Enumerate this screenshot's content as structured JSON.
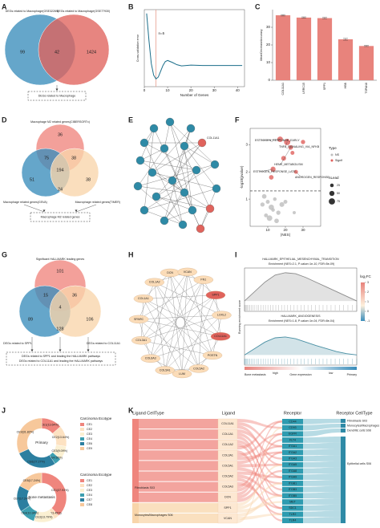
{
  "panel_labels": [
    "A",
    "B",
    "C",
    "D",
    "E",
    "F",
    "G",
    "H",
    "I",
    "J",
    "K"
  ],
  "venn_a": {
    "sets": [
      "DEGs related to Macrophage(GSE32269)",
      "DEGs related to Macrophage(GSE77930)"
    ],
    "counts": [
      99,
      42,
      1424
    ],
    "result": "DEGs related to Macrophage"
  },
  "venn_d": {
    "sets": [
      "Macrophage M2 related genes(CIBERSORTx)",
      "Macrophage related genes(GSVA)",
      "Macrophage related genes(TIMER)"
    ],
    "counts": [
      36,
      51,
      38,
      75,
      38,
      24,
      194
    ],
    "result": "Macrophage M2 related genes"
  },
  "network_e": {
    "label": "COL11A1"
  },
  "venn_g": {
    "sets": [
      "Significant HALLMARK leading genes",
      "DEGs related to SPP1",
      "DEGs related to COL11A1"
    ],
    "counts": [
      101,
      89,
      106,
      15,
      36,
      128,
      4
    ],
    "results": [
      "DEGs related to SPP1 and leading the HALLMARK pathways",
      "DEGs related to COL11A1 and leading the HALLMARK pathways"
    ]
  },
  "network_h": {
    "genes": [
      {
        "label": "DCN",
        "color": "#fbdcb8"
      },
      {
        "label": "VCAN",
        "color": "#fbdcb8"
      },
      {
        "label": "FN1",
        "color": "#fbdcb8"
      },
      {
        "label": "SPP1",
        "color": "#e0635c"
      },
      {
        "label": "LOXL2",
        "color": "#fbdcb8"
      },
      {
        "label": "COL11A1",
        "color": "#e0635c"
      },
      {
        "label": "POSTN",
        "color": "#fbdcb8"
      },
      {
        "label": "COL5A2",
        "color": "#fbdcb8"
      },
      {
        "label": "LUM",
        "color": "#fbdcb8"
      },
      {
        "label": "COL5A1",
        "color": "#fbdcb8"
      },
      {
        "label": "COL6A3",
        "color": "#fbdcb8"
      },
      {
        "label": "COL3A1",
        "color": "#fbdcb8"
      },
      {
        "label": "SPARC",
        "color": "#fbdcb8"
      },
      {
        "label": "COL1A1",
        "color": "#fbdcb8"
      },
      {
        "label": "COL1A2",
        "color": "#fbdcb8"
      }
    ]
  },
  "sankey_k": {
    "headers": [
      "Ligand CellType",
      "Ligand",
      "Receptor",
      "Receptor CellType"
    ],
    "ligand_celltypes": [
      "Fibroblasts S03",
      "Monocytes/Macrophages S06"
    ],
    "ligands": [
      "COL11A1",
      "COL1A1",
      "COL1A2",
      "COL3A1",
      "COL5A1",
      "COL5A2",
      "COL5A3",
      "DCN",
      "SPP1",
      "VCAN"
    ],
    "receptors": [
      "CD44",
      "CD93",
      "EGFR",
      "FLT4",
      "ITGA1",
      "ITGA2",
      "ITGA3",
      "ITGA5",
      "ITGA8",
      "ITGA9",
      "ITGB1",
      "ITGB3",
      "ITGB5",
      "MET",
      "SDC1",
      "TLR2",
      "TLR4"
    ],
    "receptor_celltypes": [
      "Fibroblasts S03",
      "Monocytes/Macrophages S06",
      "Dendritic cells S08",
      "Epithelial cells S06"
    ]
  },
  "chart_data": [
    {
      "type": "line",
      "x": [
        1,
        2,
        3,
        4,
        5,
        6,
        7,
        8,
        9,
        10,
        12,
        14,
        16,
        18,
        20,
        25,
        30,
        35,
        40,
        42
      ],
      "values": [
        0.29,
        0.22,
        0.16,
        0.13,
        0.12,
        0.125,
        0.14,
        0.155,
        0.165,
        0.168,
        0.163,
        0.157,
        0.154,
        0.155,
        0.156,
        0.155,
        0.155,
        0.155,
        0.155,
        0.155
      ],
      "xlim": [
        0,
        43
      ],
      "xticks": [
        0,
        10,
        20,
        30,
        40
      ],
      "ylim": [
        0.1,
        0.3
      ],
      "xlabel": "Number of Genes",
      "ylabel": "Cross-validation error",
      "annotation": "n=5",
      "vline": 5,
      "color": "#1b6e8a",
      "vline_color": "#e8a090"
    },
    {
      "type": "bar",
      "categories": [
        "COL11A1",
        "LRRC15",
        "SPP1",
        "HBB",
        "TSPAN8"
      ],
      "values": [
        36.8,
        35.5,
        35.2,
        23.2,
        19.4
      ],
      "errors": [
        0.4,
        0.4,
        0.4,
        0.5,
        0.3
      ],
      "ylim": [
        0,
        40
      ],
      "yticks": [
        0,
        10,
        20,
        30
      ],
      "ylabel": "MeanDecreaseAccuracy",
      "color": "#e8837c"
    },
    {
      "type": "scatter",
      "xlabel": "|NES|",
      "ylabel": "-log10(pvalue)",
      "xlim": [
        0,
        40
      ],
      "xticks": [
        10,
        20,
        30
      ],
      "ylim": [
        0,
        3.6
      ],
      "yticks": [
        1,
        2,
        3
      ],
      "hline": 1.3,
      "legend_title": "Type",
      "size_title": "nLead",
      "size_ticks": [
        25,
        50,
        75
      ],
      "series": [
        {
          "name": "NS",
          "color": "#bdbdbd",
          "x": [
            8,
            10,
            12,
            14,
            16,
            18,
            9,
            11,
            13,
            20,
            25,
            15,
            7
          ],
          "values": [
            1.1,
            0.9,
            0.7,
            1.0,
            0.5,
            0.8,
            0.4,
            0.3,
            0.6,
            0.9,
            0.5,
            0.2,
            0.8
          ],
          "sizes": [
            40,
            30,
            55,
            25,
            35,
            45,
            30,
            60,
            25,
            30,
            20,
            40,
            35
          ]
        },
        {
          "name": "Signif",
          "color": "#e0605c",
          "x": [
            17,
            21,
            23,
            13,
            26,
            30,
            19,
            12,
            24
          ],
          "values": [
            3.2,
            3.1,
            2.9,
            2.1,
            2.0,
            3.1,
            2.5,
            1.8,
            2.7
          ],
          "sizes": [
            60,
            75,
            40,
            50,
            30,
            35,
            45,
            40,
            30
          ]
        }
      ],
      "annotations": [
        "ESTROGEN_RESPONSE_EARLY",
        "TNFA_SIGNALING_VIA_NFKB",
        "HEME_METABOLISM",
        "ESTROGEN_RESPONSE_LATE",
        "ANDROGEN_RESPONSE"
      ]
    },
    {
      "type": "gsea",
      "ylim": [
        -0.05,
        0.7
      ],
      "ylabel": "Running enrichment score",
      "xlabel": "Gene expression",
      "left_label": "Bone metastasis",
      "right_label": "Primary",
      "high": "high",
      "low": "low",
      "legend_title": "log₂FC",
      "legend_ticks": [
        3,
        2,
        1,
        0,
        -1
      ],
      "panels": [
        {
          "title": "HALLMARK_EPITHELIAL_MESENCHYMAL_TRANSITION",
          "subtitle": "Enrichment (NES=2.1, P-value=1e-10, FDR=5e-09)",
          "color": "#8c8c8c",
          "values": [
            0,
            0.2,
            0.4,
            0.55,
            0.6,
            0.58,
            0.5,
            0.4,
            0.3,
            0.2,
            0.1,
            0
          ]
        },
        {
          "title": "HALLMARK_ANGIOGENESIS",
          "subtitle": "Enrichment (NES=1.8, P-value=1e-04, FDR=8e-04)",
          "color": "#4a90a4",
          "values": [
            0,
            0.15,
            0.3,
            0.4,
            0.42,
            0.38,
            0.3,
            0.22,
            0.15,
            0.08,
            0.03,
            0
          ]
        }
      ]
    },
    {
      "type": "pie",
      "title": "Primary",
      "legend_title": "Carcinoma Ecotype",
      "categories": [
        "CE1",
        "CE2",
        "CE3",
        "CE4",
        "CE6",
        "CE9"
      ],
      "values": [
        13.64,
        13.64,
        9.09,
        4.55,
        27.27,
        31.82
      ],
      "value_labels": [
        "CE1(13.64%)",
        "CE2(13.64%)",
        "CE3(9.09%)",
        "CE4(4.55%)",
        "CE6(27.27%)",
        "CE9(31.82%)"
      ],
      "colors": [
        "#ef857d",
        "#fde2c2",
        "#fbf0d2",
        "#3d9fb0",
        "#2c7fa0",
        "#f7c89b"
      ]
    },
    {
      "type": "pie",
      "title": "Bone metastasis",
      "legend_title": "Carcinoma Ecotype",
      "categories": [
        "CE1",
        "CE2",
        "CE3",
        "CE4",
        "CE7",
        "CE8"
      ],
      "values": [
        37.93,
        3.45,
        13.79,
        10.34,
        17.24,
        17.24
      ],
      "value_labels": [
        "CE1(37.93%)",
        "CE2(3.45%)",
        "CE3(13.79%)",
        "CE4(10.34%)",
        "CE7(17.24%)",
        "CE8(17.24%)"
      ],
      "colors": [
        "#ef857d",
        "#fde2c2",
        "#fbf0d2",
        "#3d9fb0",
        "#2c7fa0",
        "#f7c89b"
      ]
    }
  ]
}
